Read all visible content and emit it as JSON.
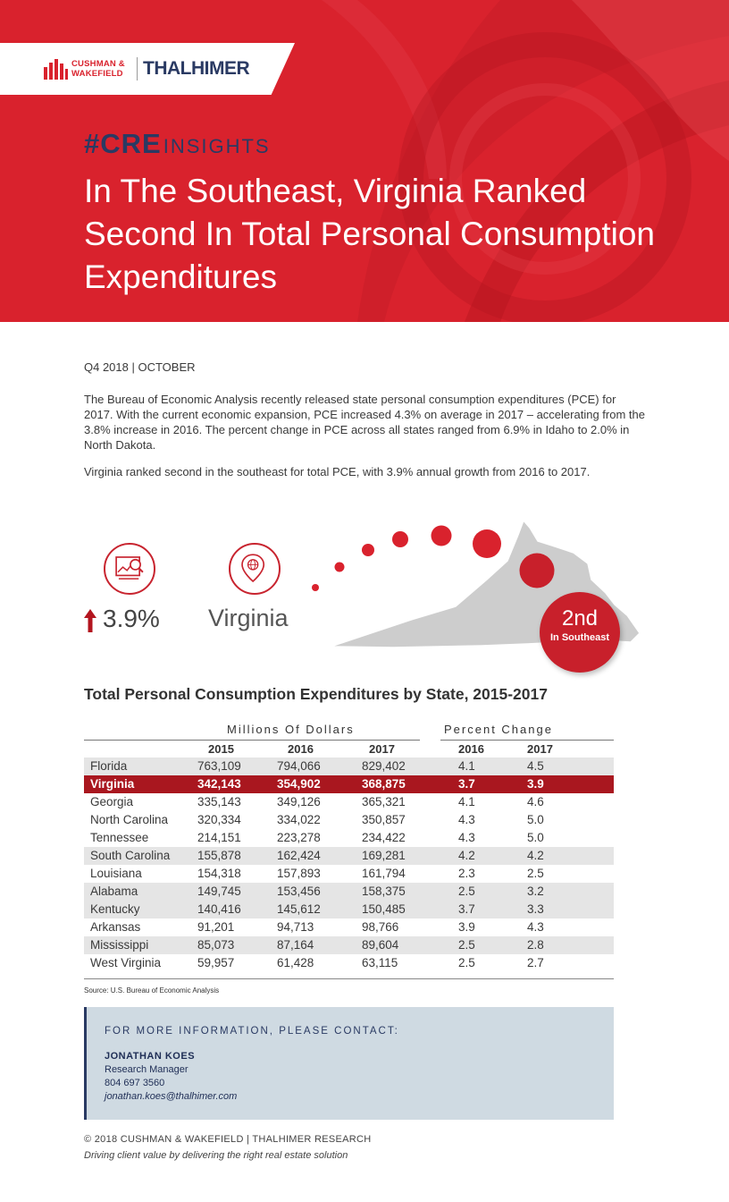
{
  "brand": {
    "cw_line1": "CUSHMAN &",
    "cw_line2": "WAKEFIELD",
    "thalhimer": "THALHIMER",
    "cre_prefix": "#CRE",
    "cre_suffix": "INSIGHTS",
    "primary_red": "#d9222d",
    "navy": "#2a3a63"
  },
  "header": {
    "title": "In The Southeast, Virginia Ranked Second In Total Personal Consumption Expenditures"
  },
  "intro": {
    "date": "Q4 2018 | OCTOBER",
    "paragraph1": "The Bureau of Economic Analysis recently released state personal consumption expenditures (PCE) for 2017. With the current economic expansion, PCE increased 4.3% on average in 2017 – accelerating from the 3.8% increase in 2016. The percent change in PCE across all states ranged from 6.9% in Idaho to 2.0% in North Dakota.",
    "paragraph2": "Virginia ranked second in the southeast for total PCE, with 3.9% annual growth from 2016 to 2017."
  },
  "infographic": {
    "growth": "3.9%",
    "state": "Virginia",
    "rank": "2nd",
    "rank_label": "In Southeast",
    "icons": [
      "chart-magnifier-icon",
      "location-pin-globe-icon",
      "up-arrow-icon"
    ]
  },
  "table": {
    "title": "Total Personal Consumption Expenditures by State, 2015-2017",
    "group_dollars": "Millions Of Dollars",
    "group_percent": "Percent Change",
    "columns": [
      "2015",
      "2016",
      "2017",
      "2016",
      "2017"
    ],
    "rows": [
      {
        "state": "Florida",
        "v2015": "763,109",
        "v2016": "794,066",
        "v2017": "829,402",
        "p2016": "4.1",
        "p2017": "4.5"
      },
      {
        "state": "Virginia",
        "v2015": "342,143",
        "v2016": "354,902",
        "v2017": "368,875",
        "p2016": "3.7",
        "p2017": "3.9"
      },
      {
        "state": "Georgia",
        "v2015": "335,143",
        "v2016": "349,126",
        "v2017": "365,321",
        "p2016": "4.1",
        "p2017": "4.6"
      },
      {
        "state": "North Carolina",
        "v2015": "320,334",
        "v2016": "334,022",
        "v2017": "350,857",
        "p2016": "4.3",
        "p2017": "5.0"
      },
      {
        "state": "Tennessee",
        "v2015": "214,151",
        "v2016": "223,278",
        "v2017": "234,422",
        "p2016": "4.3",
        "p2017": "5.0"
      },
      {
        "state": "South Carolina",
        "v2015": "155,878",
        "v2016": "162,424",
        "v2017": "169,281",
        "p2016": "4.2",
        "p2017": "4.2"
      },
      {
        "state": "Louisiana",
        "v2015": "154,318",
        "v2016": "157,893",
        "v2017": "161,794",
        "p2016": "2.3",
        "p2017": "2.5"
      },
      {
        "state": "Alabama",
        "v2015": "149,745",
        "v2016": "153,456",
        "v2017": "158,375",
        "p2016": "2.5",
        "p2017": "3.2"
      },
      {
        "state": "Kentucky",
        "v2015": "140,416",
        "v2016": "145,612",
        "v2017": "150,485",
        "p2016": "3.7",
        "p2017": "3.3"
      },
      {
        "state": "Arkansas",
        "v2015": "91,201",
        "v2016": "94,713",
        "v2017": "98,766",
        "p2016": "3.9",
        "p2017": "4.3"
      },
      {
        "state": "Mississippi",
        "v2015": "85,073",
        "v2016": "87,164",
        "v2017": "89,604",
        "p2016": "2.5",
        "p2017": "2.8"
      },
      {
        "state": "West Virginia",
        "v2015": "59,957",
        "v2016": "61,428",
        "v2017": "63,115",
        "p2016": "2.5",
        "p2017": "2.7"
      }
    ],
    "source": "Source: U.S. Bureau of Economic Analysis",
    "highlight_color": "#a9171f"
  },
  "contact": {
    "heading": "FOR MORE INFORMATION, PLEASE CONTACT:",
    "name": "JONATHAN KOES",
    "role": "Research Manager",
    "phone": "804 697 3560",
    "email": "jonathan.koes@thalhimer.com"
  },
  "footer": {
    "copyright": "© 2018 CUSHMAN & WAKEFIELD | THALHIMER RESEARCH",
    "tagline": "Driving client value by delivering the right real estate solution"
  }
}
